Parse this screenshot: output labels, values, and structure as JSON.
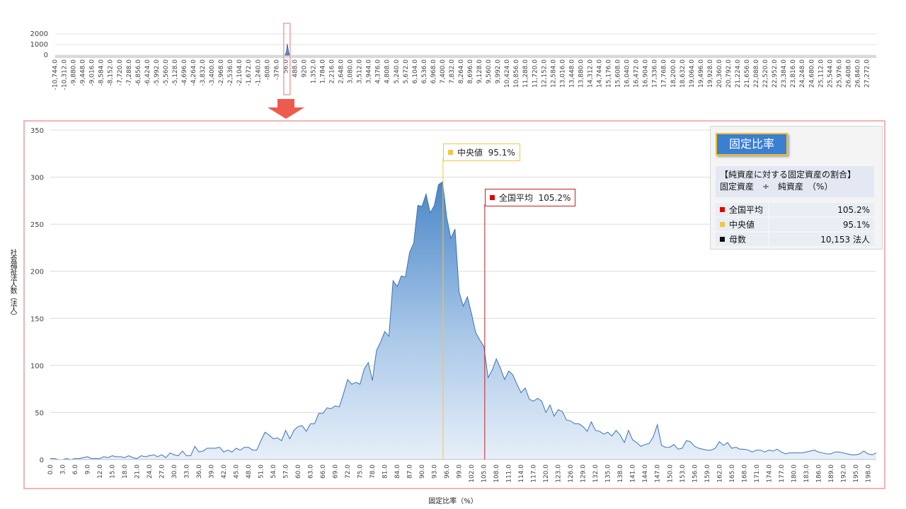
{
  "overview": {
    "y_ticks": [
      "2000",
      "1000",
      "0"
    ],
    "x_ticks": [
      "-10,744.0",
      "-10,312.0",
      "-9,880.0",
      "-9,448.0",
      "-9,016.0",
      "-8,584.0",
      "-8,152.0",
      "-7,720.0",
      "-7,288.0",
      "-6,856.0",
      "-6,424.0",
      "-5,992.0",
      "-5,560.0",
      "-5,128.0",
      "-4,696.0",
      "-4,264.0",
      "-3,832.0",
      "-3,400.0",
      "-2,968.0",
      "-2,536.0",
      "-2,104.0",
      "-1,672.0",
      "-1,240.0",
      "-808.0",
      "-376.0",
      "56.0",
      "488.0",
      "920.0",
      "1,352.0",
      "1,784.0",
      "2,216.0",
      "2,648.0",
      "3,080.0",
      "3,512.0",
      "3,944.0",
      "4,376.0",
      "4,808.0",
      "5,240.0",
      "5,672.0",
      "6,104.0",
      "6,536.0",
      "6,968.0",
      "7,400.0",
      "7,832.0",
      "8,264.0",
      "8,696.0",
      "9,128.0",
      "9,560.0",
      "9,992.0",
      "10,424.0",
      "10,856.0",
      "11,288.0",
      "11,720.0",
      "12,152.0",
      "12,584.0",
      "13,016.0",
      "13,448.0",
      "13,880.0",
      "14,312.0",
      "14,744.0",
      "15,176.0",
      "15,608.0",
      "16,040.0",
      "16,472.0",
      "16,904.0",
      "17,336.0",
      "17,768.0",
      "18,200.0",
      "18,632.0",
      "19,064.0",
      "19,496.0",
      "19,928.0",
      "20,360.0",
      "20,792.0",
      "21,224.0",
      "21,656.0",
      "22,088.0",
      "22,520.0",
      "22,952.0",
      "23,384.0",
      "23,816.0",
      "24,248.0",
      "24,680.0",
      "25,112.0",
      "25,544.0",
      "25,976.0",
      "26,408.0",
      "26,840.0",
      "27,272.0"
    ]
  },
  "chart_data": {
    "type": "area",
    "title": "固定比率",
    "xlabel": "固定比率（%）",
    "ylabel": "社会福祉法人数（法人）",
    "ylim": [
      0,
      350
    ],
    "xlim": [
      0,
      200
    ],
    "y_ticks": [
      "0",
      "50",
      "100",
      "150",
      "200",
      "250",
      "300",
      "350"
    ],
    "x_ticks": [
      "0.0",
      "3.0",
      "6.0",
      "9.0",
      "12.0",
      "15.0",
      "18.0",
      "21.0",
      "24.0",
      "27.0",
      "30.0",
      "33.0",
      "36.0",
      "39.0",
      "42.0",
      "45.0",
      "48.0",
      "51.0",
      "54.0",
      "57.0",
      "60.0",
      "63.0",
      "66.0",
      "69.0",
      "72.0",
      "75.0",
      "78.0",
      "81.0",
      "84.0",
      "87.0",
      "90.0",
      "93.0",
      "96.0",
      "99.0",
      "102.0",
      "105.0",
      "108.0",
      "111.0",
      "114.0",
      "117.0",
      "120.0",
      "123.0",
      "126.0",
      "129.0",
      "132.0",
      "135.0",
      "138.0",
      "141.0",
      "144.0",
      "147.0",
      "150.0",
      "153.0",
      "156.0",
      "159.0",
      "162.0",
      "165.0",
      "168.0",
      "171.0",
      "174.0",
      "177.0",
      "180.0",
      "183.0",
      "186.0",
      "189.0",
      "192.0",
      "195.0",
      "198.0"
    ],
    "grid": true,
    "series": [
      {
        "color": "#5b8fc9",
        "x": [
          0,
          1,
          2,
          3,
          4,
          5,
          6,
          7,
          8,
          9,
          10,
          11,
          12,
          13,
          14,
          15,
          16,
          17,
          18,
          19,
          20,
          21,
          22,
          23,
          24,
          25,
          26,
          27,
          28,
          29,
          30,
          31,
          32,
          33,
          34,
          35,
          36,
          37,
          38,
          39,
          40,
          41,
          42,
          43,
          44,
          45,
          46,
          47,
          48,
          49,
          50,
          51,
          52,
          53,
          54,
          55,
          56,
          57,
          58,
          59,
          60,
          61,
          62,
          63,
          64,
          65,
          66,
          67,
          68,
          69,
          70,
          71,
          72,
          73,
          74,
          75,
          76,
          77,
          78,
          79,
          80,
          81,
          82,
          83,
          84,
          85,
          86,
          87,
          88,
          89,
          90,
          91,
          92,
          93,
          94,
          95,
          96,
          97,
          98,
          99,
          100,
          101,
          102,
          103,
          104,
          105,
          106,
          107,
          108,
          109,
          110,
          111,
          112,
          113,
          114,
          115,
          116,
          117,
          118,
          119,
          120,
          121,
          122,
          123,
          124,
          125,
          126,
          127,
          128,
          129,
          130,
          131,
          132,
          133,
          134,
          135,
          136,
          137,
          138,
          139,
          140,
          141,
          142,
          143,
          144,
          145,
          146,
          147,
          148,
          149,
          150,
          151,
          152,
          153,
          154,
          155,
          156,
          157,
          158,
          159,
          160,
          161,
          162,
          163,
          164,
          165,
          166,
          167,
          168,
          169,
          170,
          171,
          172,
          173,
          174,
          175,
          176,
          177,
          178,
          179,
          180,
          181,
          182,
          183,
          184,
          185,
          186,
          187,
          188,
          189,
          190,
          191,
          192,
          193,
          194,
          195,
          196,
          197,
          198,
          199,
          200
        ],
        "values": [
          1,
          1,
          0,
          0,
          1,
          0,
          1,
          1,
          2,
          3,
          1,
          1,
          1,
          3,
          2,
          4,
          3,
          3,
          2,
          4,
          2,
          1,
          4,
          3,
          4,
          5,
          3,
          5,
          2,
          7,
          5,
          4,
          9,
          4,
          4,
          14,
          8,
          9,
          12,
          12,
          12,
          13,
          8,
          10,
          8,
          12,
          10,
          13,
          13,
          10,
          10,
          20,
          29,
          26,
          22,
          23,
          20,
          31,
          22,
          31,
          35,
          36,
          30,
          38,
          38,
          49,
          49,
          55,
          54,
          57,
          56,
          70,
          85,
          80,
          82,
          80,
          96,
          103,
          84,
          116,
          125,
          136,
          131,
          190,
          184,
          195,
          194,
          220,
          230,
          270,
          269,
          282,
          262,
          270,
          292,
          295,
          257,
          235,
          245,
          178,
          163,
          173,
          155,
          135,
          127,
          120,
          87,
          95,
          107,
          97,
          85,
          94,
          90,
          80,
          71,
          76,
          64,
          62,
          65,
          62,
          50,
          58,
          46,
          53,
          51,
          42,
          41,
          38,
          38,
          35,
          30,
          40,
          31,
          30,
          27,
          29,
          25,
          31,
          26,
          18,
          31,
          21,
          18,
          14,
          16,
          17,
          24,
          37,
          15,
          13,
          13,
          16,
          11,
          12,
          20,
          19,
          14,
          12,
          11,
          10,
          10,
          12,
          19,
          15,
          18,
          12,
          13,
          11,
          11,
          10,
          8,
          10,
          10,
          8,
          10,
          9,
          11,
          8,
          6,
          7,
          7,
          7,
          7,
          8,
          9,
          10,
          8,
          7,
          6,
          6,
          8,
          8,
          7,
          6,
          5,
          5,
          6,
          9,
          6,
          5,
          7
        ]
      }
    ],
    "annotations": [
      {
        "label": "中央値",
        "value_text": "95.1%",
        "x": 95.1,
        "color": "#f5c542"
      },
      {
        "label": "全国平均",
        "value_text": "105.2%",
        "x": 105.2,
        "color": "#c81e1e"
      }
    ]
  },
  "info_box": {
    "title": "固定比率",
    "desc_line1": "【純資産に対する固定資産の割合】",
    "desc_line2": "固定資産　÷　純資産　（%）",
    "rows": [
      {
        "key": "全国平均",
        "value": "105.2%",
        "color": "#e00000"
      },
      {
        "key": "中央値",
        "value": "95.1%",
        "color": "#f5c542"
      },
      {
        "key": "母数",
        "value": "10,153  法人",
        "color": "#111111"
      }
    ]
  }
}
